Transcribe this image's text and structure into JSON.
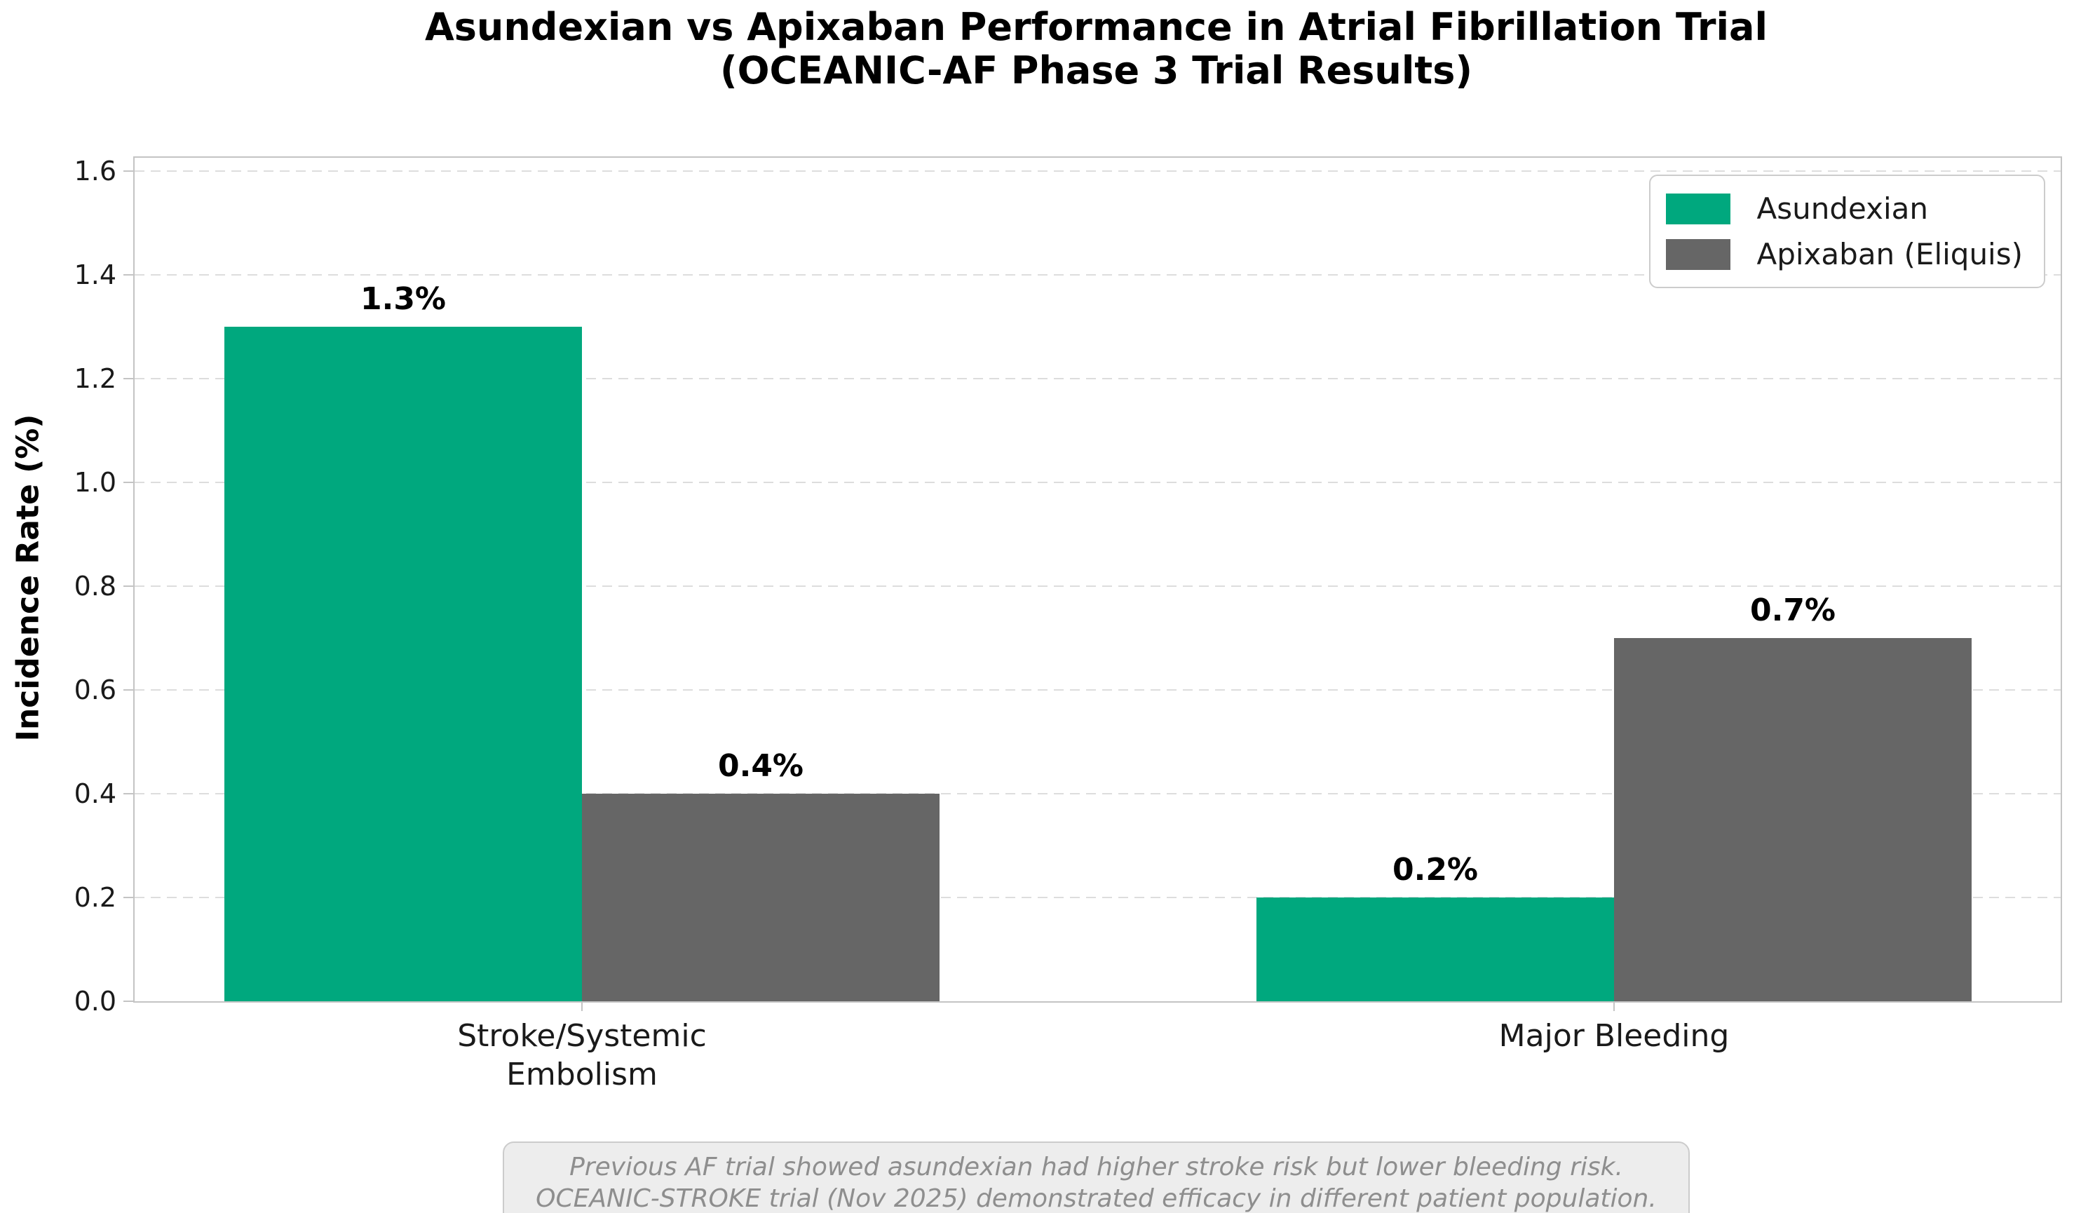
{
  "chart_data": {
    "type": "bar",
    "title": "Asundexian vs Apixaban Performance in Atrial Fibrillation Trial\n(OCEANIC-AF Phase 3 Trial Results)",
    "ylabel": "Incidence Rate (%)",
    "xlabel": "",
    "categories": [
      "Stroke/Systemic\nEmbolism",
      "Major Bleeding"
    ],
    "series": [
      {
        "name": "Asundexian",
        "color": "#00A87E",
        "values": [
          1.3,
          0.2
        ],
        "value_labels": [
          "1.3%",
          "0.2%"
        ]
      },
      {
        "name": "Apixaban (Eliquis)",
        "color": "#666666",
        "values": [
          0.4,
          0.7
        ],
        "value_labels": [
          "0.4%",
          "0.7%"
        ]
      }
    ],
    "ylim": [
      0,
      1.625
    ],
    "yticks": [
      0.0,
      0.2,
      0.4,
      0.6,
      0.8,
      1.0,
      1.2,
      1.4,
      1.6
    ],
    "ytick_labels": [
      "0.0",
      "0.2",
      "0.4",
      "0.6",
      "0.8",
      "1.0",
      "1.2",
      "1.4",
      "1.6"
    ],
    "grid": "horizontal-dashed",
    "legend_position": "upper-right",
    "footnote": "Previous AF trial showed asundexian had higher stroke risk but lower bleeding risk.\nOCEANIC-STROKE trial (Nov 2025) demonstrated efficacy in different patient population."
  },
  "colors": {
    "gridline": "#dddddd",
    "spine": "#c4c4c4",
    "tick": "#c4c4c4",
    "footnote_bg": "#ededed",
    "footnote_border": "#cccccc",
    "footnote_text": "#8e8e8e"
  }
}
